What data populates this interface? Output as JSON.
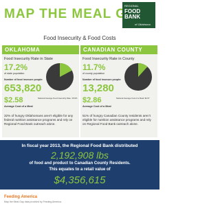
{
  "header": {
    "title": "MAP THE MEAL GAP",
    "logo_top": "REGIONAL",
    "logo_main": "FOOD BANK",
    "logo_sub": "of Oklahoma",
    "subtitle": "Food Insecurity & Food Costs"
  },
  "columns": [
    {
      "heading": "OKLAHOMA",
      "rate_title": "Food Insecurity Rate in State",
      "rate": {
        "value": 17.2,
        "label": "17.2%"
      },
      "rate_caption": "of state population",
      "people_label": "Number of food insecure people:",
      "people": "653,820",
      "meal_cost": "$2.58",
      "meal_label": "Average Cost of a Meal",
      "note": "National Average Food Insecurity Rate: 15.9%",
      "text": "32% of hungry Oklahomans aren't eligible for any federal nutrition assistance programs and rely on Regional Food Bank outreach alone."
    },
    {
      "heading": "CANADIAN COUNTY",
      "rate_title": "Food Insecurity Rate in County",
      "rate": {
        "value": 11.7,
        "label": "11.7%"
      },
      "rate_caption": "of county population",
      "people_label": "Number of food insecure people:",
      "people": "13,280",
      "meal_cost": "$2.86",
      "meal_label": "Average Cost of a Meal",
      "note": "National Average Cost of a Meal: $2.67",
      "text": "51% of hungry Canadian County residents aren't eligible for nutrition assistance programs and rely on Regional Food Bank outreach alone."
    }
  ],
  "summary": {
    "intro": "In fiscal year 2013, the Regional Food Bank distributed",
    "amount": "2,192,908 lbs",
    "line2": "of food and product to Canadian County Residents.",
    "line3": "This equates to a retail value of",
    "value": "$4,356,615"
  },
  "footer": {
    "logo": "Feeding America",
    "text": "Map the Meal Gap data provided by Feeding America."
  }
}
